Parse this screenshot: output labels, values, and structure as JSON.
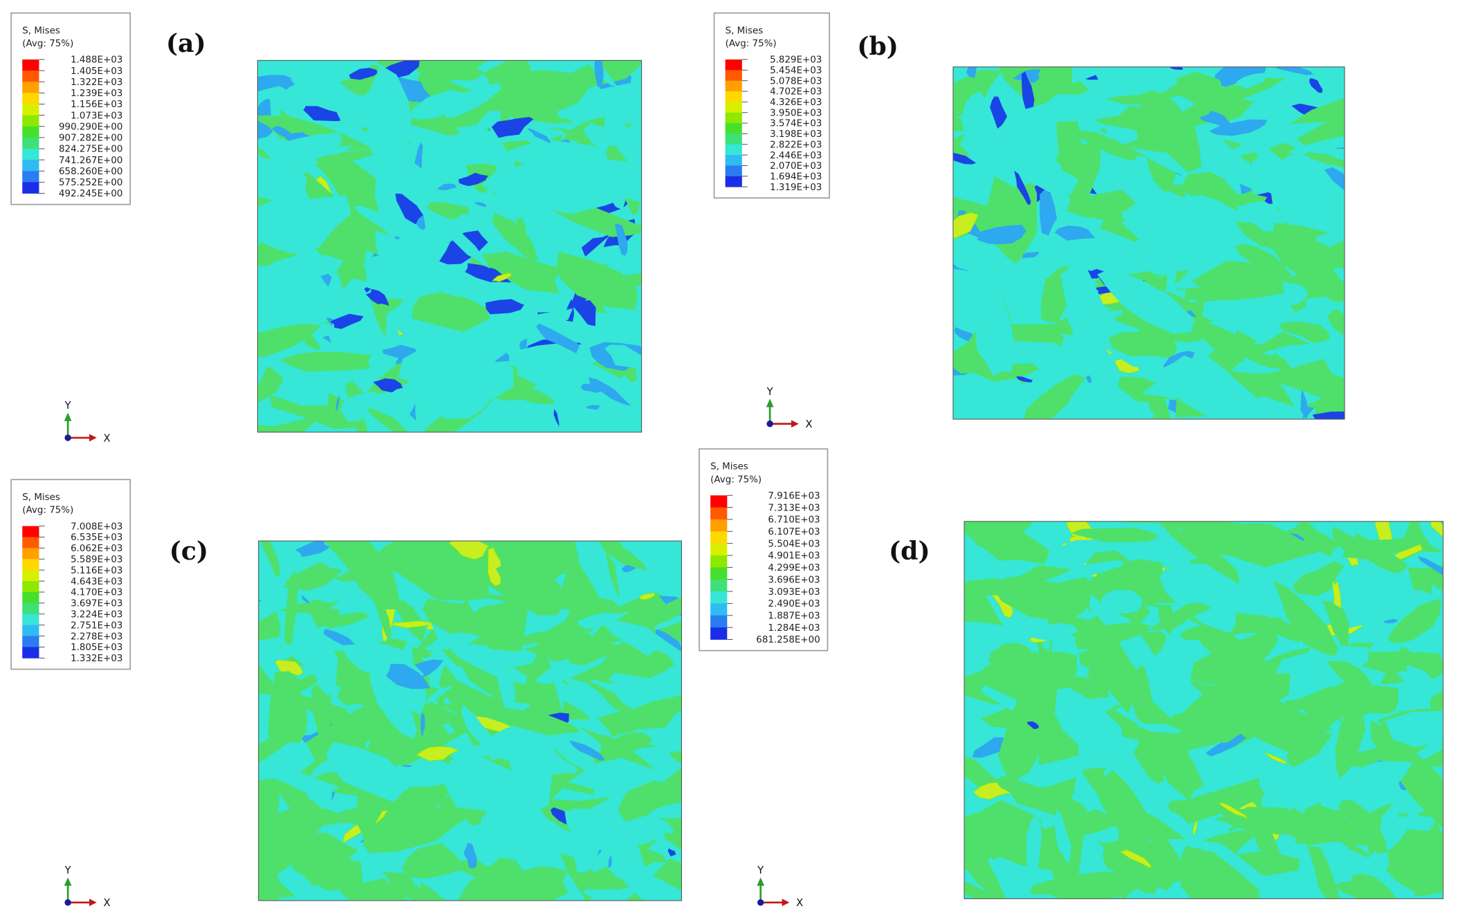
{
  "panels": [
    {
      "label": "(a)",
      "legend": {
        "title": "S, Mises",
        "subtitle": "(Avg: 75%)",
        "values": [
          "1.488E+03",
          "1.405E+03",
          "1.322E+03",
          "1.239E+03",
          "1.156E+03",
          "1.073E+03",
          "990.290E+00",
          "907.282E+00",
          "824.275E+00",
          "741.267E+00",
          "658.260E+00",
          "575.252E+00",
          "492.245E+00"
        ]
      },
      "triad": {
        "y": "Y",
        "x": "X"
      }
    },
    {
      "label": "(b)",
      "legend": {
        "title": "S, Mises",
        "subtitle": "(Avg: 75%)",
        "values": [
          "5.829E+03",
          "5.454E+03",
          "5.078E+03",
          "4.702E+03",
          "4.326E+03",
          "3.950E+03",
          "3.574E+03",
          "3.198E+03",
          "2.822E+03",
          "2.446E+03",
          "2.070E+03",
          "1.694E+03",
          "1.319E+03"
        ]
      },
      "triad": {
        "y": "Y",
        "x": "X"
      }
    },
    {
      "label": "(c)",
      "legend": {
        "title": "S, Mises",
        "subtitle": "(Avg: 75%)",
        "values": [
          "7.008E+03",
          "6.535E+03",
          "6.062E+03",
          "5.589E+03",
          "5.116E+03",
          "4.643E+03",
          "4.170E+03",
          "3.697E+03",
          "3.224E+03",
          "2.751E+03",
          "2.278E+03",
          "1.805E+03",
          "1.332E+03"
        ]
      },
      "triad": {
        "y": "Y",
        "x": "X"
      }
    },
    {
      "label": "(d)",
      "legend": {
        "title": "S, Mises",
        "subtitle": "(Avg: 75%)",
        "values": [
          "7.916E+03",
          "7.313E+03",
          "6.710E+03",
          "6.107E+03",
          "5.504E+03",
          "4.901E+03",
          "4.299E+03",
          "3.696E+03",
          "3.093E+03",
          "2.490E+03",
          "1.887E+03",
          "1.284E+03",
          "681.258E+00"
        ]
      },
      "triad": {
        "y": "Y",
        "x": "X"
      }
    }
  ]
}
